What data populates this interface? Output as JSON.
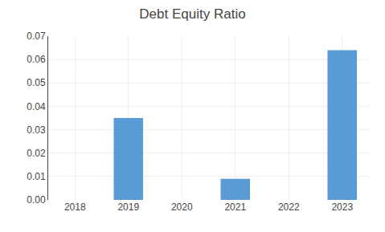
{
  "chart_data": {
    "type": "bar",
    "title": "Debt Equity Ratio",
    "categories": [
      "2018",
      "2019",
      "2020",
      "2021",
      "2022",
      "2023"
    ],
    "values": [
      0.0,
      0.035,
      0.0,
      0.009,
      0.0,
      0.064
    ],
    "color": "#5B9BD5",
    "ylim": [
      0,
      0.07
    ],
    "yticks": [
      {
        "value": 0,
        "label": "0.00"
      },
      0.01,
      0.02,
      0.03,
      0.04,
      0.05,
      0.06,
      0.07
    ],
    "grid": true
  }
}
